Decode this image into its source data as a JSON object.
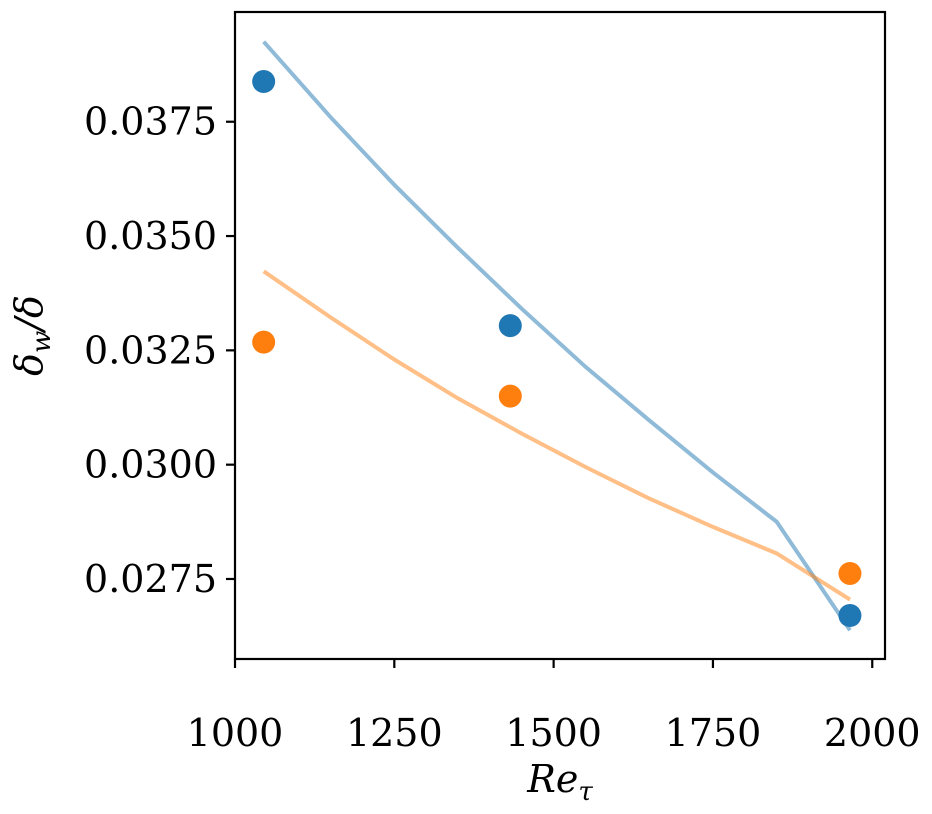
{
  "chart_data": {
    "type": "scatter",
    "xlabel": "Re_τ",
    "ylabel": "δ_w/δ",
    "xlabel_parts": {
      "base": "Re",
      "sub": "τ"
    },
    "ylabel_parts": {
      "base": "δ",
      "sub": "w",
      "rest": "/δ"
    },
    "xlim": [
      1000,
      2020
    ],
    "ylim": [
      0.02575,
      0.0399
    ],
    "xticks": [
      1000,
      1250,
      1500,
      1750,
      2000
    ],
    "xtick_labels": [
      "1000",
      "1250",
      "1500",
      "1750",
      "2000"
    ],
    "yticks": [
      0.0275,
      0.03,
      0.0325,
      0.035,
      0.0375
    ],
    "ytick_labels": [
      "0.0275",
      "0.0300",
      "0.0325",
      "0.0350",
      "0.0375"
    ],
    "grid": false,
    "legend": "none",
    "series": [
      {
        "color": "#1f77b4",
        "points": [
          {
            "x": 1045,
            "y": 0.03838
          },
          {
            "x": 1432,
            "y": 0.03304
          },
          {
            "x": 1965,
            "y": 0.0267
          }
        ],
        "fit": {
          "x": [
            1045,
            1150,
            1250,
            1350,
            1450,
            1550,
            1650,
            1750,
            1850,
            1965
          ],
          "y": [
            0.03925,
            0.0376,
            0.03612,
            0.03474,
            0.03341,
            0.03214,
            0.03097,
            0.02983,
            0.02875,
            0.02638
          ]
        }
      },
      {
        "color": "#ff7f0e",
        "points": [
          {
            "x": 1045,
            "y": 0.03268
          },
          {
            "x": 1432,
            "y": 0.0315
          },
          {
            "x": 1965,
            "y": 0.02762
          }
        ],
        "fit": {
          "x": [
            1045,
            1150,
            1250,
            1350,
            1450,
            1550,
            1650,
            1750,
            1850,
            1965
          ],
          "y": [
            0.03423,
            0.03322,
            0.0323,
            0.03145,
            0.03068,
            0.02995,
            0.02926,
            0.02864,
            0.02806,
            0.02705
          ]
        }
      }
    ]
  }
}
